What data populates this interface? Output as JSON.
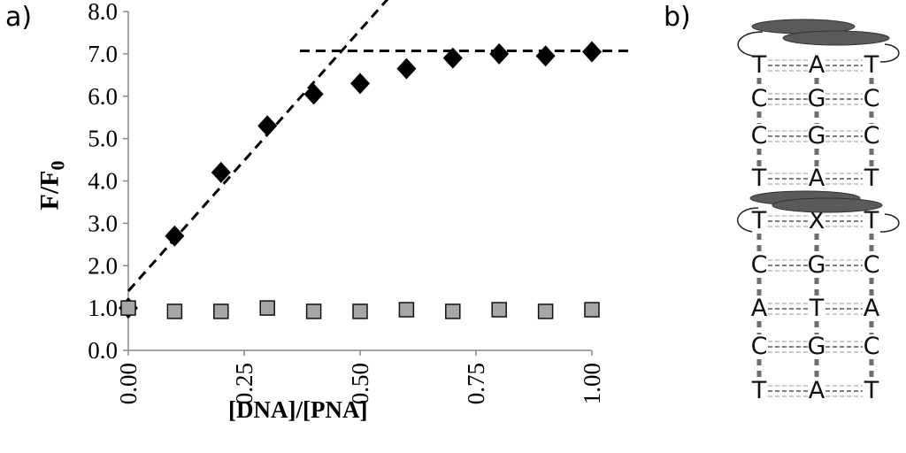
{
  "panel_labels": {
    "a": "a)",
    "b": "b)"
  },
  "chart_data": {
    "type": "scatter",
    "xlabel": "[DNA]/[PNA]",
    "ylabel_main": "F/F",
    "ylabel_sub": "0",
    "xlim": [
      0,
      1
    ],
    "ylim": [
      0,
      8
    ],
    "xticks": [
      "0.00",
      "0.25",
      "0.50",
      "0.75",
      "1.00"
    ],
    "xtick_values": [
      0,
      0.25,
      0.5,
      0.75,
      1.0
    ],
    "yticks": [
      "0.0",
      "1.0",
      "2.0",
      "3.0",
      "4.0",
      "5.0",
      "6.0",
      "7.0",
      "8.0"
    ],
    "ytick_values": [
      0,
      1,
      2,
      3,
      4,
      5,
      6,
      7,
      8
    ],
    "grid": false,
    "series": [
      {
        "marker": "diamond",
        "color": "#000000",
        "x": [
          0,
          0.1,
          0.2,
          0.3,
          0.4,
          0.5,
          0.6,
          0.7,
          0.8,
          0.9,
          1.0
        ],
        "y": [
          1.0,
          2.7,
          4.2,
          5.3,
          6.05,
          6.3,
          6.65,
          6.9,
          7.0,
          6.95,
          7.05
        ]
      },
      {
        "marker": "square",
        "color": "#a6a6a6",
        "x": [
          0,
          0.1,
          0.2,
          0.3,
          0.4,
          0.5,
          0.6,
          0.7,
          0.8,
          0.9,
          1.0
        ],
        "y": [
          1.0,
          0.92,
          0.92,
          1.0,
          0.92,
          0.92,
          0.96,
          0.92,
          0.96,
          0.92,
          0.96
        ]
      }
    ],
    "fit_lines": [
      {
        "style": "dashed",
        "x": [
          0,
          0.56
        ],
        "y": [
          1.4,
          8.3
        ]
      },
      {
        "style": "dashed",
        "x": [
          0.37,
          1.09
        ],
        "y": [
          7.07,
          7.07
        ]
      }
    ]
  },
  "diagram": {
    "rows": [
      [
        "T",
        "A",
        "T"
      ],
      [
        "C",
        "G",
        "C"
      ],
      [
        "C",
        "G",
        "C"
      ],
      [
        "T",
        "A",
        "T"
      ],
      [
        "T",
        "X",
        "T"
      ],
      [
        "C",
        "G",
        "C"
      ],
      [
        "A",
        "T",
        "A"
      ],
      [
        "C",
        "G",
        "C"
      ],
      [
        "T",
        "A",
        "T"
      ]
    ],
    "colors": {
      "letters": "#111111",
      "backbone": "#6e6e6e",
      "ellipse": "#5a5a5a",
      "bonds": "#9a9a9a"
    }
  }
}
